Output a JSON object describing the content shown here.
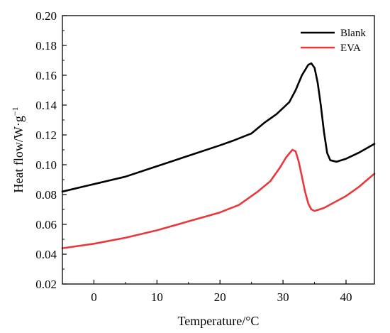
{
  "chart_data": {
    "type": "line",
    "xlabel": "Temperature/°C",
    "ylabel_main": "Heat flow/W·g",
    "ylabel_exp": "−1",
    "xlim": [
      -5,
      44.5
    ],
    "ylim": [
      0.02,
      0.2
    ],
    "xticks": [
      0,
      10,
      20,
      30,
      40
    ],
    "xtick_labels": [
      "0",
      "10",
      "20",
      "30",
      "40"
    ],
    "yticks": [
      0.02,
      0.04,
      0.06,
      0.08,
      0.1,
      0.12,
      0.14,
      0.16,
      0.18,
      0.2
    ],
    "ytick_labels": [
      "0.02",
      "0.04",
      "0.06",
      "0.08",
      "0.10",
      "0.12",
      "0.14",
      "0.16",
      "0.18",
      "0.20"
    ],
    "grid": false,
    "legend_position": "top-right",
    "series": [
      {
        "name": "Blank",
        "color": "#000000",
        "points": [
          [
            -5,
            0.082
          ],
          [
            0,
            0.087
          ],
          [
            5,
            0.092
          ],
          [
            10,
            0.099
          ],
          [
            15,
            0.106
          ],
          [
            20,
            0.113
          ],
          [
            22,
            0.116
          ],
          [
            25,
            0.121
          ],
          [
            27,
            0.128
          ],
          [
            29,
            0.134
          ],
          [
            31,
            0.142
          ],
          [
            32,
            0.15
          ],
          [
            33,
            0.16
          ],
          [
            34,
            0.167
          ],
          [
            34.5,
            0.168
          ],
          [
            35,
            0.165
          ],
          [
            35.5,
            0.155
          ],
          [
            36,
            0.14
          ],
          [
            36.5,
            0.122
          ],
          [
            37,
            0.108
          ],
          [
            37.5,
            0.103
          ],
          [
            38.5,
            0.102
          ],
          [
            40,
            0.104
          ],
          [
            42,
            0.108
          ],
          [
            44.5,
            0.114
          ]
        ]
      },
      {
        "name": "EVA",
        "color": "#e8383b",
        "points": [
          [
            -5,
            0.044
          ],
          [
            0,
            0.047
          ],
          [
            5,
            0.051
          ],
          [
            10,
            0.056
          ],
          [
            15,
            0.062
          ],
          [
            20,
            0.068
          ],
          [
            23,
            0.073
          ],
          [
            26,
            0.082
          ],
          [
            28,
            0.089
          ],
          [
            29.5,
            0.098
          ],
          [
            30.5,
            0.105
          ],
          [
            31.5,
            0.11
          ],
          [
            32,
            0.109
          ],
          [
            32.5,
            0.102
          ],
          [
            33,
            0.092
          ],
          [
            33.5,
            0.082
          ],
          [
            34,
            0.074
          ],
          [
            34.5,
            0.07
          ],
          [
            35,
            0.069
          ],
          [
            36.5,
            0.071
          ],
          [
            40,
            0.079
          ],
          [
            42,
            0.085
          ],
          [
            44.5,
            0.094
          ]
        ]
      }
    ]
  }
}
